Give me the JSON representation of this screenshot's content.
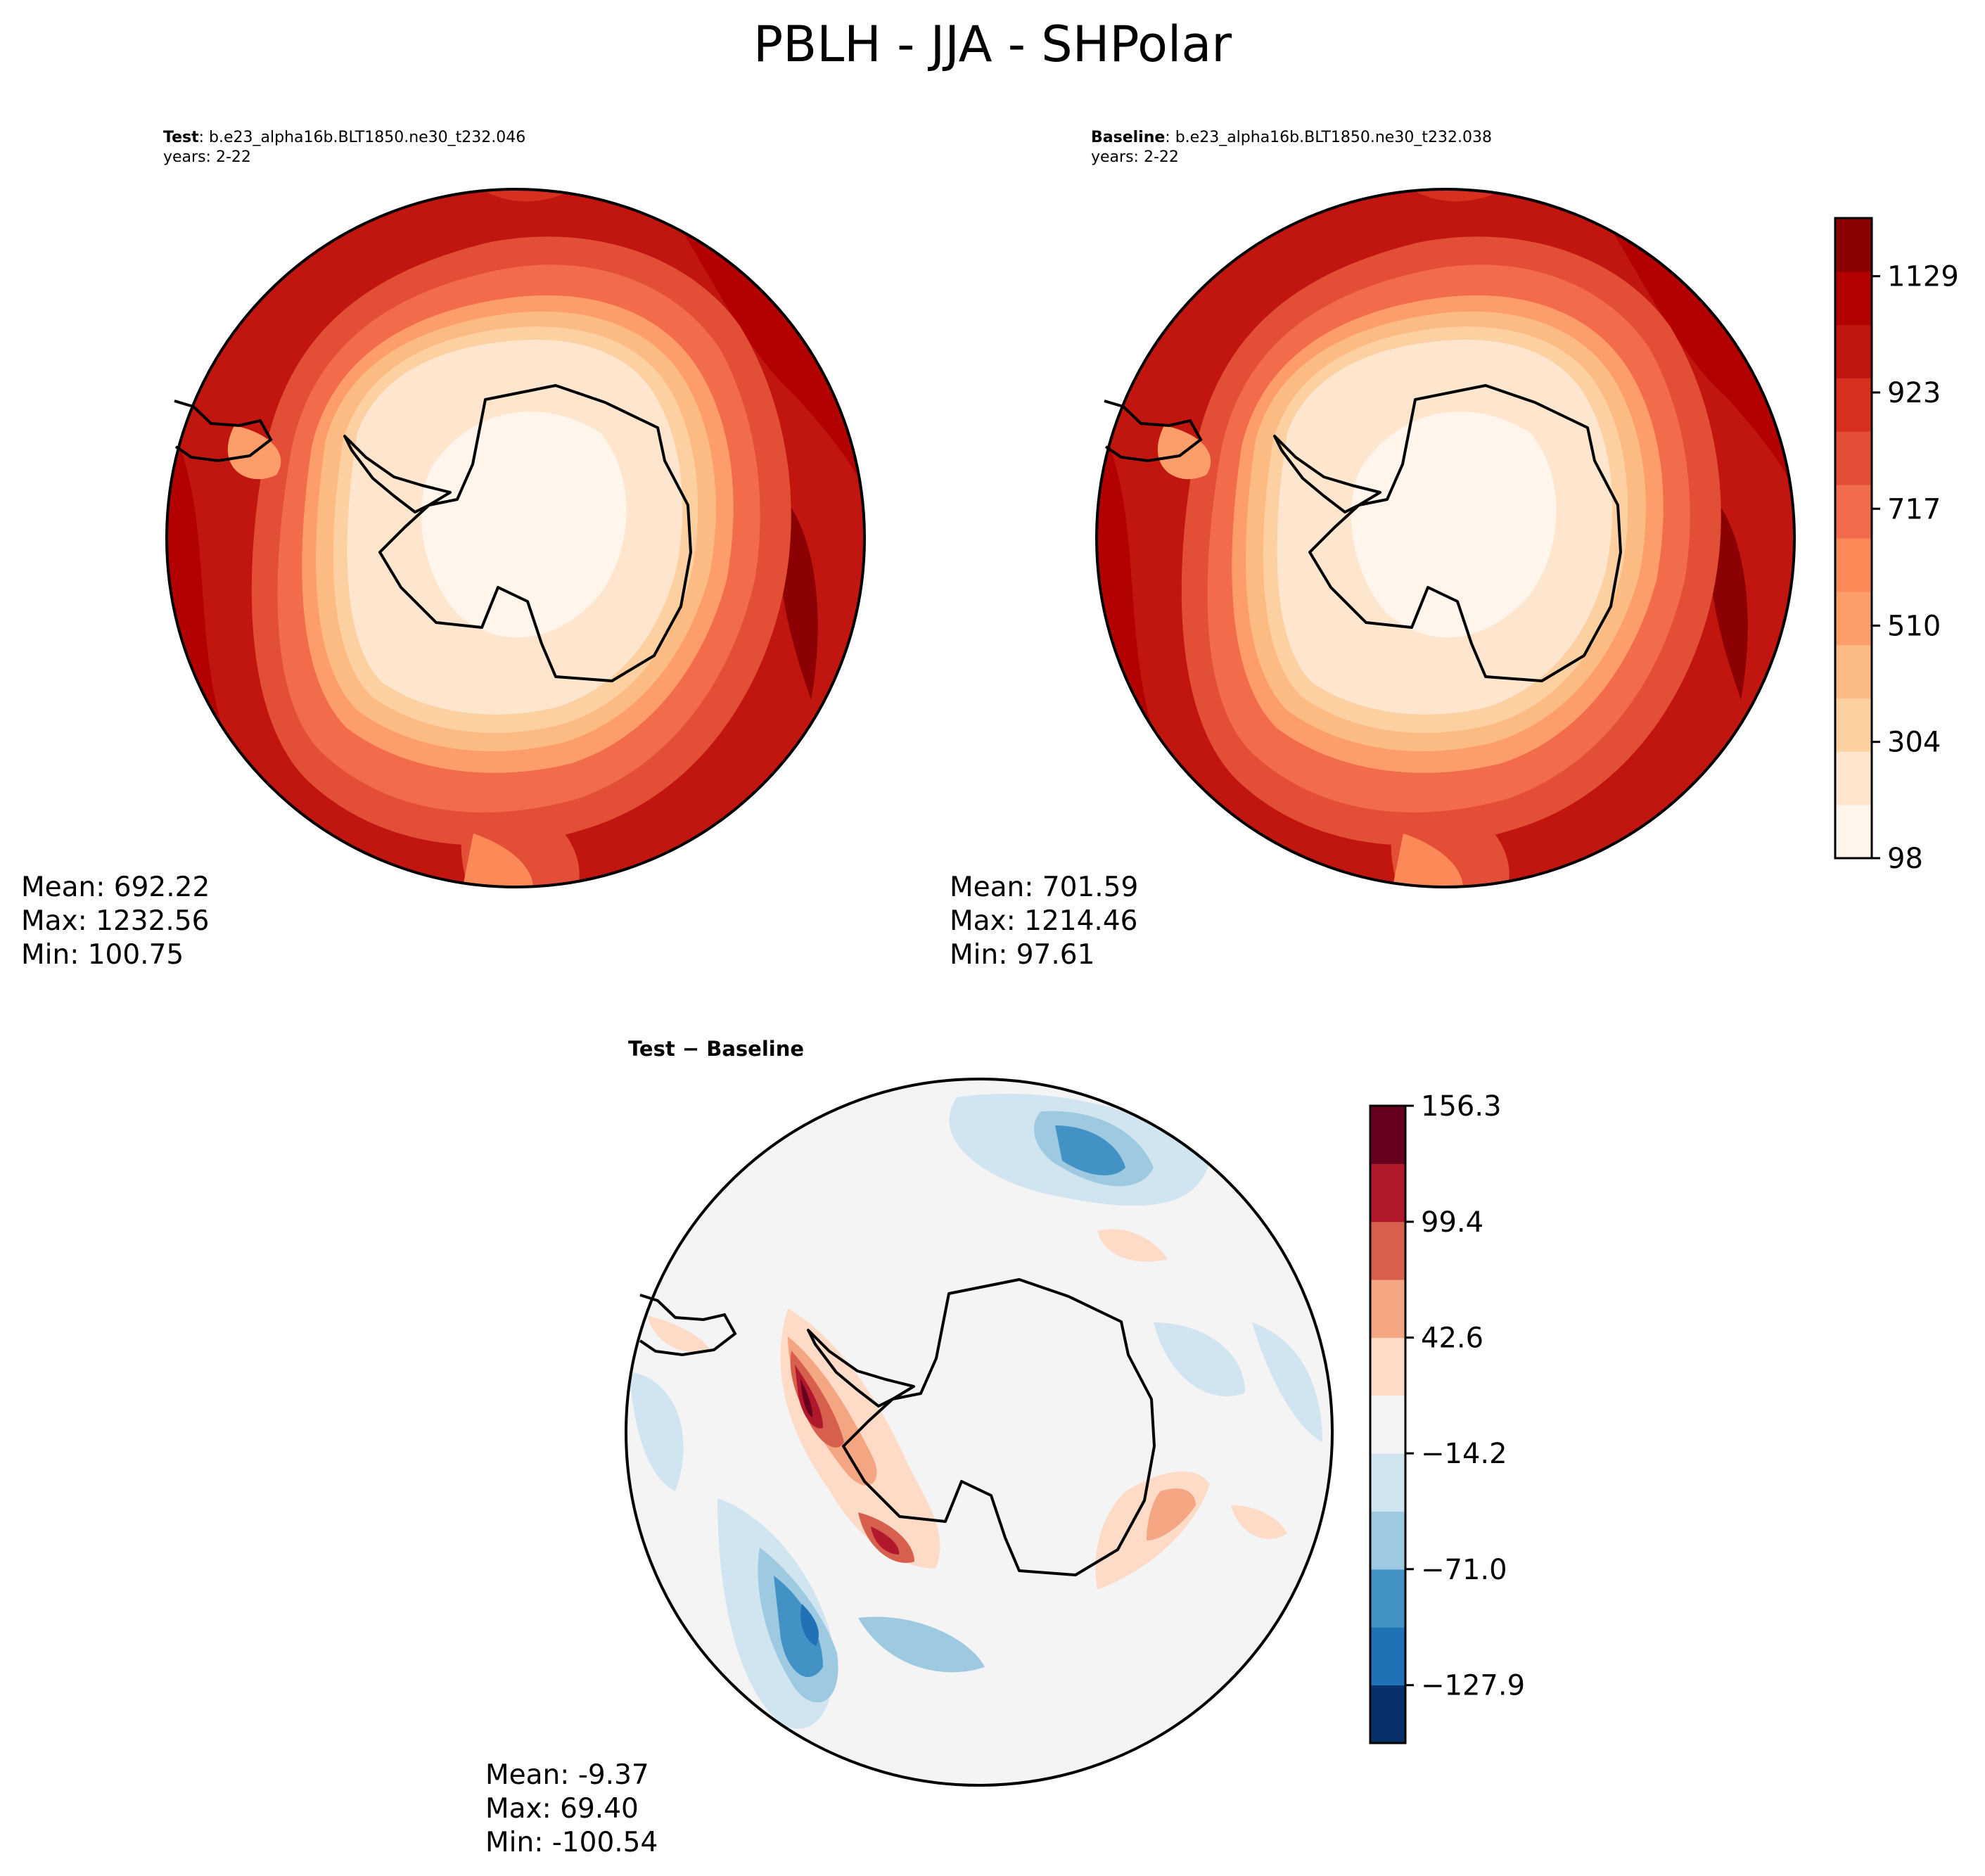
{
  "figure": {
    "title": "PBLH - JJA - SHPolar"
  },
  "panels": {
    "test": {
      "label": "Test",
      "case": ": b.e23_alpha16b.BLT1850.ne30_t232.046",
      "years": "years: 2-22",
      "stats": {
        "mean": "Mean: 692.22",
        "max": "Max: 1232.56",
        "min": "Min: 100.75"
      }
    },
    "baseline": {
      "label": "Baseline",
      "case": ": b.e23_alpha16b.BLT1850.ne30_t232.038",
      "years": "years: 2-22",
      "stats": {
        "mean": "Mean: 701.59",
        "max": "Max: 1214.46",
        "min": "Min: 97.61"
      }
    },
    "diff": {
      "label": "Test − Baseline",
      "stats": {
        "mean": "Mean: -9.37",
        "max": "Max: 69.40",
        "min": "Min: -100.54"
      }
    }
  },
  "colors": {
    "abs_levels": [
      "#fff5eb",
      "#fee6ce",
      "#fdd0a2",
      "#fdbb84",
      "#fc9d6a",
      "#fc8a59",
      "#f26b4a",
      "#e34e36",
      "#d7301f",
      "#c1150f",
      "#b30000",
      "#8b0000"
    ],
    "diff_levels": [
      "#08306b",
      "#2171b5",
      "#4292c6",
      "#9ecae1",
      "#d1e5f0",
      "#f4f4f4",
      "#fddbc7",
      "#f4a582",
      "#d6604d",
      "#b2182b",
      "#67001f"
    ],
    "coast": "#000000"
  },
  "chart_data": [
    {
      "type": "heatmap",
      "projection": "south-polar-stereographic",
      "title": "Test",
      "subtitle": "b.e23_alpha16b.BLT1850.ne30_t232.046 years: 2-22",
      "field": "PBLH",
      "mean": 692.22,
      "max": 1232.56,
      "min": 100.75,
      "colorbar": {
        "ticks": [
          98,
          304,
          510,
          717,
          923,
          1129
        ],
        "range": [
          98,
          1232
        ],
        "cmap": "OrRd"
      },
      "pattern": "low values (~100-400) over Antarctica rising to ~900-1230 over the Southern Ocean"
    },
    {
      "type": "heatmap",
      "projection": "south-polar-stereographic",
      "title": "Baseline",
      "subtitle": "b.e23_alpha16b.BLT1850.ne30_t232.038 years: 2-22",
      "field": "PBLH",
      "mean": 701.59,
      "max": 1214.46,
      "min": 97.61,
      "colorbar": {
        "ticks": [
          98,
          304,
          510,
          717,
          923,
          1129
        ],
        "range": [
          98,
          1232
        ],
        "cmap": "OrRd"
      }
    },
    {
      "type": "heatmap",
      "projection": "south-polar-stereographic",
      "title": "Test − Baseline",
      "mean": -9.37,
      "max": 69.4,
      "min": -100.54,
      "colorbar": {
        "ticks": [
          156.3,
          99.4,
          42.6,
          -14.2,
          -71.0,
          -127.9
        ],
        "tick_labels": [
          "156.3",
          "99.4",
          "42.6",
          "−14.2",
          "−71.0",
          "−127.9"
        ],
        "range": [
          -156.3,
          156.3
        ],
        "cmap": "RdBu_r"
      }
    }
  ]
}
